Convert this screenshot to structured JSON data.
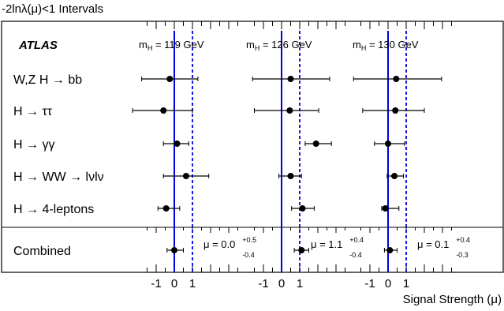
{
  "chart_data": {
    "type": "scatter",
    "title": "-2lnλ(μ)<1 Intervals",
    "xlabel": "Signal Strength (μ)",
    "experiment_label": "ATLAS",
    "tick_labels": [
      "-1",
      "0",
      "1"
    ],
    "x_range_per_panel": [
      -1.65,
      3.9
    ],
    "panels": [
      {
        "mass_label_prefix": "m",
        "mass_label_sub": "H",
        "mass_label_value": " = 119 GeV",
        "channels": [
          {
            "value": -0.25,
            "lo": -1.8,
            "hi": 1.3
          },
          {
            "value": -0.6,
            "lo": -2.3,
            "hi": 1.0
          },
          {
            "value": 0.15,
            "lo": -0.6,
            "hi": 0.8
          },
          {
            "value": 0.65,
            "lo": -0.6,
            "hi": 1.9
          },
          {
            "value": -0.45,
            "lo": -0.9,
            "hi": 0.3
          }
        ],
        "combined": {
          "value": 0.0,
          "lo": -0.4,
          "hi": 0.5
        },
        "combined_text": "μ = 0.0",
        "combined_up": "+0.5",
        "combined_down": "-0.4"
      },
      {
        "mass_label_prefix": "m",
        "mass_label_sub": "H",
        "mass_label_value": " = 126 GeV",
        "channels": [
          {
            "value": 0.5,
            "lo": -1.6,
            "hi": 2.65
          },
          {
            "value": 0.45,
            "lo": -1.5,
            "hi": 2.05
          },
          {
            "value": 1.9,
            "lo": 1.3,
            "hi": 2.75
          },
          {
            "value": 0.5,
            "lo": -0.15,
            "hi": 1.1
          },
          {
            "value": 1.15,
            "lo": 0.55,
            "hi": 1.8
          }
        ],
        "combined": {
          "value": 1.1,
          "lo": 0.7,
          "hi": 1.5
        },
        "combined_text": "μ = 1.1",
        "combined_up": "+0.4",
        "combined_down": "-0.4"
      },
      {
        "mass_label_prefix": "m",
        "mass_label_sub": "H",
        "mass_label_value": " = 130 GeV",
        "channels": [
          {
            "value": 0.45,
            "lo": -1.9,
            "hi": 2.95
          },
          {
            "value": 0.4,
            "lo": -1.4,
            "hi": 2.0
          },
          {
            "value": 0.0,
            "lo": -0.75,
            "hi": 0.9
          },
          {
            "value": 0.35,
            "lo": -0.05,
            "hi": 0.85
          },
          {
            "value": -0.15,
            "lo": -0.35,
            "hi": 0.6
          }
        ],
        "combined": {
          "value": 0.1,
          "lo": -0.2,
          "hi": 0.5
        },
        "combined_text": "μ = 0.1",
        "combined_up": "+0.4",
        "combined_down": "-0.3"
      }
    ],
    "channel_labels": [
      "W,Z H → bb",
      "H → ττ",
      "H → γγ",
      "H → WW → lνlν",
      "H → 4-leptons"
    ],
    "combined_label": "Combined",
    "reference_lines": {
      "solid_at": 0,
      "dashed_at": 1
    },
    "colors": {
      "reference_line": "#0000dd",
      "marker": "#000000",
      "frame": "#000000"
    }
  }
}
